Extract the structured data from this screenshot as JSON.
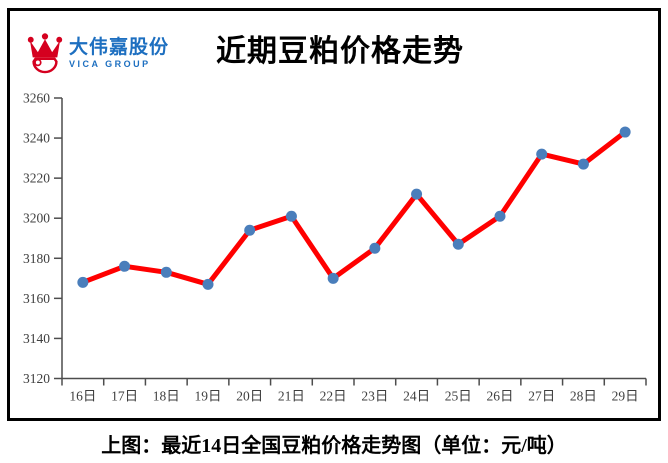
{
  "logo": {
    "company_name": "大伟嘉股份",
    "group_name": "VICA GROUP",
    "text_color": "#1d6fc0",
    "crown_color": "#d5001f"
  },
  "chart_data": {
    "type": "line",
    "title": "近期豆粕价格走势",
    "categories": [
      "16日",
      "17日",
      "18日",
      "19日",
      "20日",
      "21日",
      "22日",
      "23日",
      "24日",
      "25日",
      "26日",
      "27日",
      "28日",
      "29日"
    ],
    "values": [
      3168,
      3176,
      3173,
      3167,
      3194,
      3201,
      3170,
      3185,
      3212,
      3187,
      3201,
      3232,
      3227,
      3243
    ],
    "ylim": [
      3120,
      3260
    ],
    "yticks": [
      3260,
      3240,
      3220,
      3200,
      3180,
      3160,
      3140,
      3120
    ],
    "xlabel": "",
    "ylabel": "",
    "grid": false,
    "legend": "none",
    "line_color": "#ff0000",
    "marker_color": "#4a7ebb",
    "axis_color": "#4d4d4d",
    "label_color": "#3f3f3f"
  },
  "footer": {
    "caption": "上图：最近14日全国豆粕价格走势图（单位：元/吨）"
  }
}
